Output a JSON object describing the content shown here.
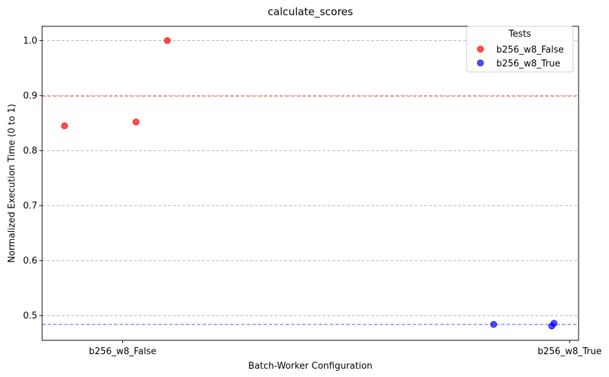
{
  "chart_data": {
    "type": "scatter",
    "title": "calculate_scores",
    "xlabel": "Batch-Worker Configuration",
    "ylabel": "Normalized Execution Time (0 to 1)",
    "categories": [
      "b256_w8_False",
      "b256_w8_True"
    ],
    "xlim": [
      -0.18,
      1.02
    ],
    "ylim": [
      0.455,
      1.026
    ],
    "yticks": [
      "0.5",
      "0.6",
      "0.7",
      "0.8",
      "0.9",
      "1.0"
    ],
    "grid": "y-dashed",
    "legend": {
      "title": "Tests",
      "placement": "top-right"
    },
    "series": [
      {
        "name": "b256_w8_False",
        "color": "#ff0000",
        "points": [
          {
            "x": -0.13,
            "y": 0.845
          },
          {
            "x": 0.03,
            "y": 0.852
          },
          {
            "x": 0.1,
            "y": 1.0
          }
        ],
        "reference_line": 0.899
      },
      {
        "name": "b256_w8_True",
        "color": "#0000ff",
        "points": [
          {
            "x": 0.83,
            "y": 0.484
          },
          {
            "x": 0.96,
            "y": 0.481
          },
          {
            "x": 0.965,
            "y": 0.486
          }
        ],
        "reference_line": 0.484
      }
    ]
  }
}
